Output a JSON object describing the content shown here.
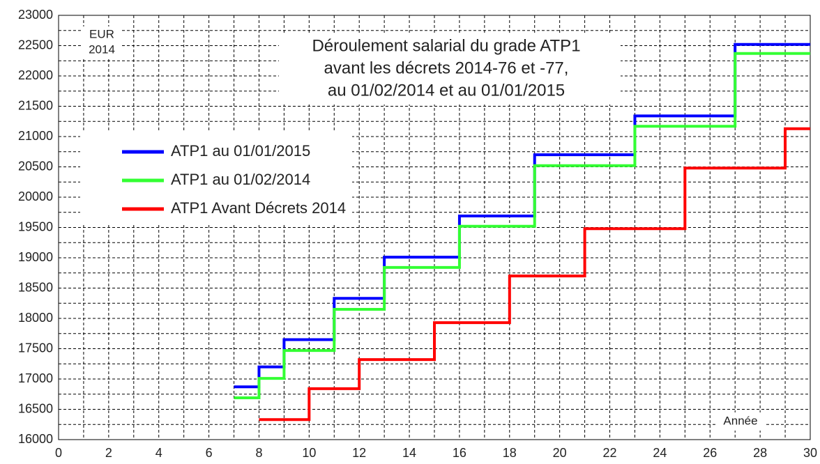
{
  "chart_data": {
    "type": "step",
    "title": [
      "Déroulement salarial du grade ATP1",
      "avant les décrets 2014-76 et -77,",
      "au 01/02/2014 et au 01/01/2015"
    ],
    "y_label": [
      "EUR",
      "2014"
    ],
    "x_label": "Année",
    "xlim": [
      0,
      30
    ],
    "ylim": [
      16000,
      23000
    ],
    "xticks": [
      0,
      2,
      4,
      6,
      8,
      10,
      12,
      14,
      16,
      18,
      20,
      22,
      24,
      26,
      28,
      30
    ],
    "yticks": [
      16000,
      16500,
      17000,
      17500,
      18000,
      18500,
      19000,
      19500,
      20000,
      20500,
      21000,
      21500,
      22000,
      22500,
      23000
    ],
    "minor_xticks": [
      1,
      3,
      5,
      7,
      9,
      11,
      13,
      15,
      17,
      19,
      21,
      23,
      25,
      27,
      29
    ],
    "minor_yticks": [
      16250,
      16750,
      17250,
      17750,
      18250,
      18750,
      19250,
      19750,
      20250,
      20750,
      21250,
      21750,
      22250,
      22750
    ],
    "grid": true,
    "legend": "upper left",
    "series": [
      {
        "name": "ATP1 au 01/01/2015",
        "color": "#0000ff",
        "x": [
          7,
          8,
          9,
          11,
          13,
          16,
          19,
          23,
          27,
          30
        ],
        "values": [
          16870,
          17200,
          17650,
          18330,
          19010,
          19690,
          20700,
          21340,
          22520,
          22520
        ]
      },
      {
        "name": "ATP1 au 01/02/2014",
        "color": "#33ff33",
        "x": [
          7,
          8,
          9,
          11,
          13,
          16,
          19,
          23,
          27,
          30
        ],
        "values": [
          16690,
          17010,
          17470,
          18150,
          18840,
          19520,
          20520,
          21170,
          22370,
          22370
        ]
      },
      {
        "name": "ATP1 Avant Décrets 2014",
        "color": "#ff0000",
        "x": [
          8,
          10,
          12,
          15,
          18,
          21,
          25,
          29,
          30
        ],
        "values": [
          16330,
          16840,
          17320,
          17930,
          18700,
          19480,
          20480,
          21130,
          21130
        ]
      }
    ]
  }
}
